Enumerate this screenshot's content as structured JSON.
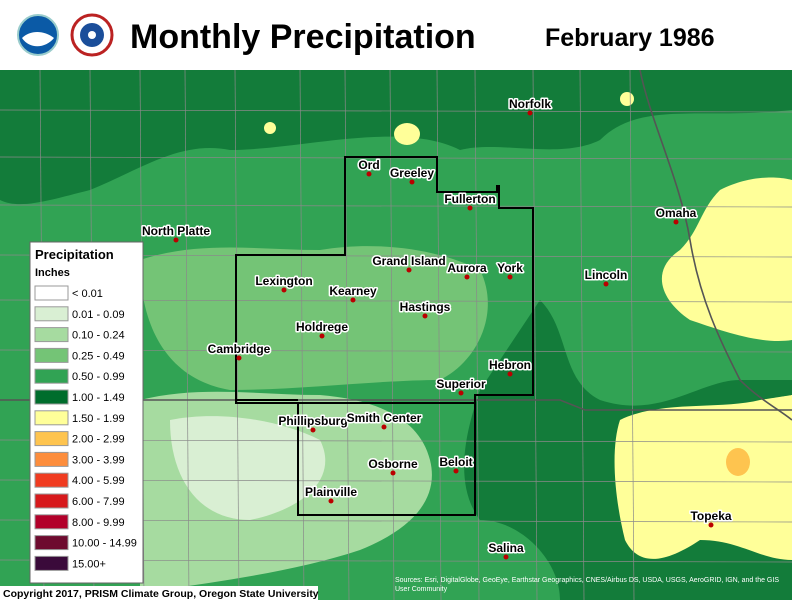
{
  "header": {
    "title": "Monthly Precipitation",
    "date": "February 1986"
  },
  "legend": {
    "title": "Precipitation",
    "units": "Inches",
    "items": [
      {
        "label": "< 0.01",
        "color": "#ffffff"
      },
      {
        "label": "0.01 - 0.09",
        "color": "#d9efd3"
      },
      {
        "label": "0.10 - 0.24",
        "color": "#a6dba0"
      },
      {
        "label": "0.25 - 0.49",
        "color": "#74c476"
      },
      {
        "label": "0.50 - 0.99",
        "color": "#31a354"
      },
      {
        "label": "1.00 - 1.49",
        "color": "#006d2c"
      },
      {
        "label": "1.50 - 1.99",
        "color": "#ffff99"
      },
      {
        "label": "2.00 - 2.99",
        "color": "#fec44f"
      },
      {
        "label": "3.00 - 3.99",
        "color": "#fd8d3c"
      },
      {
        "label": "4.00 - 5.99",
        "color": "#f03b20"
      },
      {
        "label": "6.00 - 7.99",
        "color": "#d7191c"
      },
      {
        "label": "8.00 - 9.99",
        "color": "#b2002a"
      },
      {
        "label": "10.00 - 14.99",
        "color": "#6e0b2f"
      },
      {
        "label": "15.00+",
        "color": "#3a0a3a"
      }
    ]
  },
  "cities": [
    "Norfolk",
    "Ord",
    "Greeley",
    "Fullerton",
    "Omaha",
    "North Platte",
    "Grand Island",
    "Aurora",
    "York",
    "Lincoln",
    "Lexington",
    "Kearney",
    "Hastings",
    "Holdrege",
    "Cambridge",
    "Hebron",
    "Superior",
    "Phillipsburg",
    "Smith Center",
    "Osborne",
    "Beloit",
    "Plainville",
    "Topeka",
    "Salina"
  ],
  "footer": {
    "copyright": "Copyright 2017, PRISM Climate Group, Oregon State University",
    "attribution": "Sources: Esri, DigitalGlobe, GeoEye, Earthstar Geographics, CNES/Airbus DS, USDA, USGS, AeroGRID, IGN, and the GIS User Community"
  }
}
